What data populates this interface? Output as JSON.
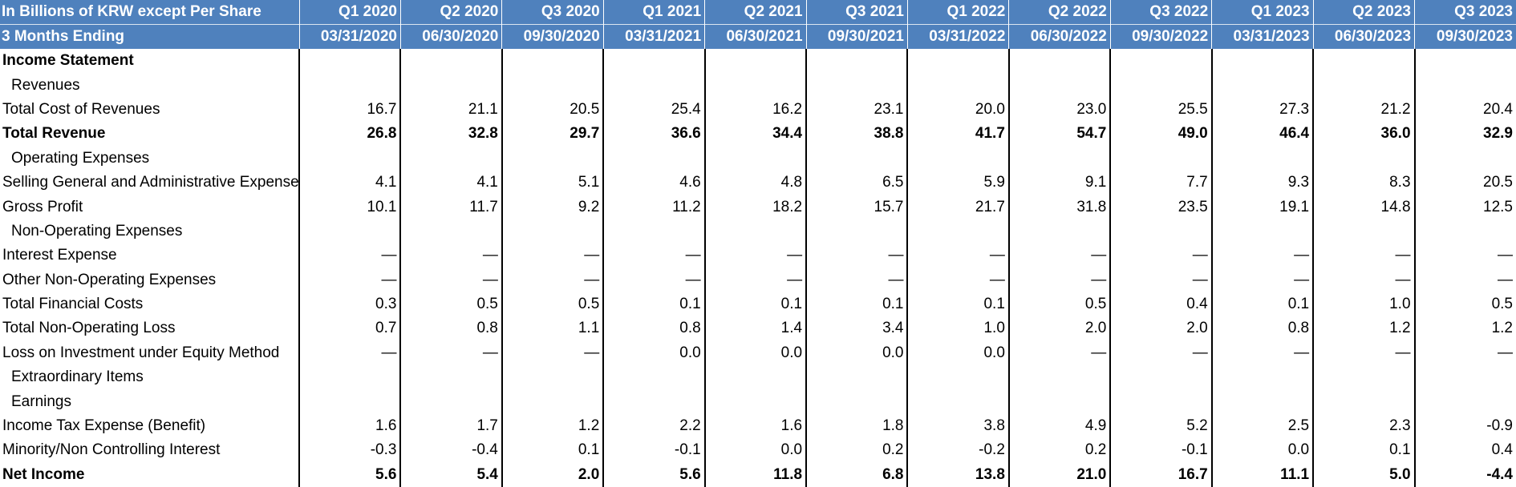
{
  "header": {
    "units_label": "In Billions of KRW except Per Share",
    "period_label": "3 Months Ending",
    "columns": [
      {
        "quarter": "Q1 2020",
        "date": "03/31/2020"
      },
      {
        "quarter": "Q2 2020",
        "date": "06/30/2020"
      },
      {
        "quarter": "Q3 2020",
        "date": "09/30/2020"
      },
      {
        "quarter": "Q1 2021",
        "date": "03/31/2021"
      },
      {
        "quarter": "Q2 2021",
        "date": "06/30/2021"
      },
      {
        "quarter": "Q3 2021",
        "date": "09/30/2021"
      },
      {
        "quarter": "Q1 2022",
        "date": "03/31/2022"
      },
      {
        "quarter": "Q2 2022",
        "date": "06/30/2022"
      },
      {
        "quarter": "Q3 2022",
        "date": "09/30/2022"
      },
      {
        "quarter": "Q1 2023",
        "date": "03/31/2023"
      },
      {
        "quarter": "Q2 2023",
        "date": "06/30/2023"
      },
      {
        "quarter": "Q3 2023",
        "date": "09/30/2023"
      }
    ]
  },
  "rows": [
    {
      "label": "Income Statement",
      "style": "section",
      "values": [
        "",
        "",
        "",
        "",
        "",
        "",
        "",
        "",
        "",
        "",
        "",
        ""
      ]
    },
    {
      "label": "Revenues",
      "style": "indent",
      "values": [
        "",
        "",
        "",
        "",
        "",
        "",
        "",
        "",
        "",
        "",
        "",
        ""
      ]
    },
    {
      "label": "Total Cost of Revenues",
      "style": "normal",
      "values": [
        "16.7",
        "21.1",
        "20.5",
        "25.4",
        "16.2",
        "23.1",
        "20.0",
        "23.0",
        "25.5",
        "27.3",
        "21.2",
        "20.4"
      ]
    },
    {
      "label": "Total Revenue",
      "style": "bold",
      "values": [
        "26.8",
        "32.8",
        "29.7",
        "36.6",
        "34.4",
        "38.8",
        "41.7",
        "54.7",
        "49.0",
        "46.4",
        "36.0",
        "32.9"
      ]
    },
    {
      "label": "Operating Expenses",
      "style": "indent",
      "values": [
        "",
        "",
        "",
        "",
        "",
        "",
        "",
        "",
        "",
        "",
        "",
        ""
      ]
    },
    {
      "label": "Selling General and Administrative Expense",
      "style": "normal",
      "values": [
        "4.1",
        "4.1",
        "5.1",
        "4.6",
        "4.8",
        "6.5",
        "5.9",
        "9.1",
        "7.7",
        "9.3",
        "8.3",
        "20.5"
      ]
    },
    {
      "label": "Gross Profit",
      "style": "normal",
      "values": [
        "10.1",
        "11.7",
        "9.2",
        "11.2",
        "18.2",
        "15.7",
        "21.7",
        "31.8",
        "23.5",
        "19.1",
        "14.8",
        "12.5"
      ]
    },
    {
      "label": "Non-Operating Expenses",
      "style": "indent",
      "values": [
        "",
        "",
        "",
        "",
        "",
        "",
        "",
        "",
        "",
        "",
        "",
        ""
      ]
    },
    {
      "label": "Interest Expense",
      "style": "normal",
      "values": [
        "—",
        "—",
        "—",
        "—",
        "—",
        "—",
        "—",
        "—",
        "—",
        "—",
        "—",
        "—"
      ]
    },
    {
      "label": "Other Non-Operating Expenses",
      "style": "normal",
      "values": [
        "—",
        "—",
        "—",
        "—",
        "—",
        "—",
        "—",
        "—",
        "—",
        "—",
        "—",
        "—"
      ]
    },
    {
      "label": "Total Financial Costs",
      "style": "normal",
      "values": [
        "0.3",
        "0.5",
        "0.5",
        "0.1",
        "0.1",
        "0.1",
        "0.1",
        "0.5",
        "0.4",
        "0.1",
        "1.0",
        "0.5"
      ]
    },
    {
      "label": "Total Non-Operating Loss",
      "style": "normal",
      "values": [
        "0.7",
        "0.8",
        "1.1",
        "0.8",
        "1.4",
        "3.4",
        "1.0",
        "2.0",
        "2.0",
        "0.8",
        "1.2",
        "1.2"
      ]
    },
    {
      "label": "Loss on Investment under Equity Method",
      "style": "normal",
      "values": [
        "—",
        "—",
        "—",
        "0.0",
        "0.0",
        "0.0",
        "0.0",
        "—",
        "—",
        "—",
        "—",
        "—"
      ]
    },
    {
      "label": "Extraordinary Items",
      "style": "indent",
      "values": [
        "",
        "",
        "",
        "",
        "",
        "",
        "",
        "",
        "",
        "",
        "",
        ""
      ]
    },
    {
      "label": "Earnings",
      "style": "indent",
      "values": [
        "",
        "",
        "",
        "",
        "",
        "",
        "",
        "",
        "",
        "",
        "",
        ""
      ]
    },
    {
      "label": "Income Tax Expense (Benefit)",
      "style": "normal",
      "values": [
        "1.6",
        "1.7",
        "1.2",
        "2.2",
        "1.6",
        "1.8",
        "3.8",
        "4.9",
        "5.2",
        "2.5",
        "2.3",
        "-0.9"
      ]
    },
    {
      "label": "Minority/Non Controlling Interest",
      "style": "normal",
      "values": [
        "-0.3",
        "-0.4",
        "0.1",
        "-0.1",
        "0.0",
        "0.2",
        "-0.2",
        "0.2",
        "-0.1",
        "0.0",
        "0.1",
        "0.4"
      ]
    },
    {
      "label": "Net Income",
      "style": "bold",
      "values": [
        "5.6",
        "5.4",
        "2.0",
        "5.6",
        "11.8",
        "6.8",
        "13.8",
        "21.0",
        "16.7",
        "11.1",
        "5.0",
        "-4.4"
      ]
    }
  ]
}
